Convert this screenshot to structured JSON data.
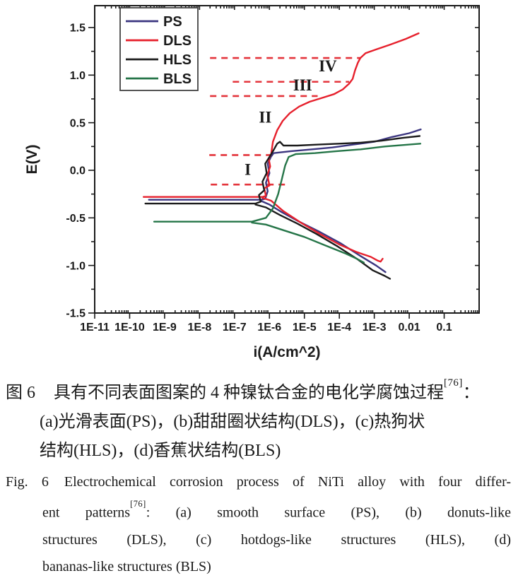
{
  "chart_data": {
    "type": "line",
    "title": "",
    "xlabel": "i(A/cm^2)",
    "ylabel": "E(V)",
    "x_scale": "log10",
    "xlim": [
      -11,
      0
    ],
    "ylim": [
      -1.5,
      1.73
    ],
    "grid": false,
    "legend_position": "top-left",
    "x_ticks": [
      {
        "log": -11,
        "label": "1E-11"
      },
      {
        "log": -10,
        "label": "1E-10"
      },
      {
        "log": -9,
        "label": "1E-9"
      },
      {
        "log": -8,
        "label": "1E-8"
      },
      {
        "log": -7,
        "label": "1E-7"
      },
      {
        "log": -6,
        "label": "1E-6"
      },
      {
        "log": -5,
        "label": "1E-5"
      },
      {
        "log": -4,
        "label": "1E-4"
      },
      {
        "log": -3,
        "label": "1E-3"
      },
      {
        "log": -2,
        "label": "0.01"
      },
      {
        "log": -1,
        "label": "0.1"
      }
    ],
    "y_ticks": [
      {
        "value": 1.5,
        "label": "1.5"
      },
      {
        "value": 1.0,
        "label": "1.0"
      },
      {
        "value": 0.5,
        "label": "0.5"
      },
      {
        "value": 0.0,
        "label": "0.0"
      },
      {
        "value": -0.5,
        "label": "-0.5"
      },
      {
        "value": -1.0,
        "label": "-1.0"
      },
      {
        "value": -1.5,
        "label": "-1.5"
      }
    ],
    "y_minor_step": 0.25,
    "corrosion_potentials_V": {
      "PS": -0.31,
      "DLS": -0.28,
      "HLS": -0.35,
      "BLS": -0.54
    },
    "series": [
      {
        "name": "PS",
        "color": "#3c3680",
        "segments": {
          "anodic": [
            [
              -9.45,
              -0.31
            ],
            [
              -6.25,
              -0.31
            ],
            [
              -6.12,
              -0.3
            ],
            [
              -6.05,
              -0.22
            ],
            [
              -6.1,
              -0.13
            ],
            [
              -6.0,
              -0.03
            ],
            [
              -6.05,
              0.07
            ],
            [
              -5.96,
              0.14
            ],
            [
              -5.88,
              0.18
            ],
            [
              -5.4,
              0.2
            ],
            [
              -4.8,
              0.22
            ],
            [
              -4.2,
              0.24
            ],
            [
              -3.6,
              0.27
            ],
            [
              -3.0,
              0.3
            ],
            [
              -2.5,
              0.35
            ],
            [
              -2.0,
              0.39
            ],
            [
              -1.67,
              0.43
            ]
          ],
          "cathodic": [
            [
              -6.25,
              -0.32
            ],
            [
              -6.0,
              -0.36
            ],
            [
              -5.65,
              -0.44
            ],
            [
              -5.15,
              -0.54
            ],
            [
              -4.55,
              -0.65
            ],
            [
              -3.95,
              -0.77
            ],
            [
              -3.4,
              -0.9
            ],
            [
              -2.95,
              -1.0
            ],
            [
              -2.68,
              -1.07
            ]
          ]
        }
      },
      {
        "name": "DLS",
        "color": "#e6202c",
        "segments": {
          "anodic": [
            [
              -9.6,
              -0.28
            ],
            [
              -6.2,
              -0.28
            ],
            [
              -6.1,
              -0.27
            ],
            [
              -6.15,
              -0.19
            ],
            [
              -6.0,
              -0.16
            ],
            [
              -6.06,
              -0.05
            ],
            [
              -5.98,
              0.04
            ],
            [
              -6.02,
              0.12
            ],
            [
              -5.95,
              0.17
            ],
            [
              -5.9,
              0.3
            ],
            [
              -5.78,
              0.42
            ],
            [
              -5.62,
              0.52
            ],
            [
              -5.42,
              0.6
            ],
            [
              -5.15,
              0.67
            ],
            [
              -4.85,
              0.72
            ],
            [
              -4.5,
              0.76
            ],
            [
              -4.15,
              0.8
            ],
            [
              -3.9,
              0.85
            ],
            [
              -3.72,
              0.91
            ],
            [
              -3.62,
              0.96
            ],
            [
              -3.55,
              1.05
            ],
            [
              -3.47,
              1.13
            ],
            [
              -3.4,
              1.18
            ],
            [
              -3.25,
              1.23
            ],
            [
              -2.95,
              1.27
            ],
            [
              -2.55,
              1.32
            ],
            [
              -2.1,
              1.38
            ],
            [
              -1.73,
              1.44
            ]
          ],
          "cathodic": [
            [
              -6.2,
              -0.29
            ],
            [
              -5.95,
              -0.32
            ],
            [
              -5.6,
              -0.43
            ],
            [
              -5.1,
              -0.55
            ],
            [
              -4.55,
              -0.67
            ],
            [
              -4.0,
              -0.78
            ],
            [
              -3.5,
              -0.86
            ],
            [
              -3.1,
              -0.91
            ],
            [
              -2.9,
              -0.95
            ],
            [
              -2.82,
              -0.96
            ],
            [
              -2.76,
              -0.93
            ]
          ]
        }
      },
      {
        "name": "HLS",
        "color": "#1b1b1b",
        "segments": {
          "anodic": [
            [
              -9.55,
              -0.35
            ],
            [
              -6.4,
              -0.35
            ],
            [
              -6.25,
              -0.33
            ],
            [
              -6.3,
              -0.26
            ],
            [
              -6.15,
              -0.21
            ],
            [
              -6.2,
              -0.12
            ],
            [
              -6.08,
              -0.03
            ],
            [
              -6.12,
              0.07
            ],
            [
              -6.0,
              0.14
            ],
            [
              -5.9,
              0.2
            ],
            [
              -5.78,
              0.28
            ],
            [
              -5.7,
              0.3
            ],
            [
              -5.6,
              0.26
            ],
            [
              -5.2,
              0.26
            ],
            [
              -4.6,
              0.27
            ],
            [
              -4.0,
              0.28
            ],
            [
              -3.4,
              0.29
            ],
            [
              -2.8,
              0.31
            ],
            [
              -2.2,
              0.34
            ],
            [
              -1.7,
              0.36
            ]
          ],
          "cathodic": [
            [
              -6.4,
              -0.36
            ],
            [
              -6.1,
              -0.39
            ],
            [
              -5.7,
              -0.47
            ],
            [
              -5.2,
              -0.56
            ],
            [
              -4.65,
              -0.67
            ],
            [
              -4.05,
              -0.8
            ],
            [
              -3.5,
              -0.93
            ],
            [
              -3.05,
              -1.05
            ],
            [
              -2.7,
              -1.11
            ],
            [
              -2.55,
              -1.14
            ]
          ]
        }
      },
      {
        "name": "BLS",
        "color": "#257548",
        "segments": {
          "anodic": [
            [
              -9.3,
              -0.54
            ],
            [
              -6.5,
              -0.54
            ],
            [
              -6.1,
              -0.5
            ],
            [
              -5.9,
              -0.4
            ],
            [
              -5.75,
              -0.25
            ],
            [
              -5.65,
              -0.1
            ],
            [
              -5.55,
              0.05
            ],
            [
              -5.45,
              0.14
            ],
            [
              -5.25,
              0.17
            ],
            [
              -4.7,
              0.18
            ],
            [
              -4.1,
              0.2
            ],
            [
              -3.4,
              0.22
            ],
            [
              -2.7,
              0.25
            ],
            [
              -2.0,
              0.27
            ],
            [
              -1.68,
              0.28
            ]
          ],
          "cathodic": [
            [
              -6.5,
              -0.55
            ],
            [
              -6.1,
              -0.57
            ],
            [
              -5.6,
              -0.63
            ],
            [
              -5.0,
              -0.7
            ],
            [
              -4.4,
              -0.79
            ],
            [
              -3.85,
              -0.87
            ],
            [
              -3.5,
              -0.93
            ],
            [
              -3.3,
              -0.97
            ]
          ]
        }
      }
    ],
    "guide_lines": [
      {
        "E": 1.18,
        "log_x_from": -7.7,
        "log_x_to": -3.38,
        "style": "dashed",
        "color": "#e4353c"
      },
      {
        "E": 0.93,
        "log_x_from": -7.05,
        "log_x_to": -3.72,
        "style": "dashed",
        "color": "#e4353c"
      },
      {
        "E": 0.78,
        "log_x_from": -7.7,
        "log_x_to": -4.62,
        "style": "dashed",
        "color": "#e4353c"
      },
      {
        "E": 0.16,
        "log_x_from": -7.72,
        "log_x_to": -5.85,
        "style": "dashed",
        "color": "#e4353c"
      },
      {
        "E": -0.15,
        "log_x_from": -7.68,
        "log_x_to": -5.5,
        "style": "dashed",
        "color": "#e4353c"
      }
    ],
    "region_labels": [
      {
        "text": "I",
        "log_x": -6.62,
        "E": -0.05
      },
      {
        "text": "II",
        "log_x": -6.12,
        "E": 0.5
      },
      {
        "text": "III",
        "log_x": -5.05,
        "E": 0.84
      },
      {
        "text": "IV",
        "log_x": -4.33,
        "E": 1.04
      }
    ]
  },
  "caption_zh": {
    "fig_label": "图 6",
    "line1_main": "具有不同表面图案的 4 种镍钛合金的电化学腐蚀过程",
    "line1_sup": "[76]",
    "line1_tail": "：",
    "line2": "(a)光滑表面(PS)，(b)甜甜圈状结构(DLS)，(c)热狗状",
    "line3": "结构(HLS)，(d)香蕉状结构(BLS)"
  },
  "caption_en": {
    "fig_label": "Fig. 6",
    "line1": "Electrochemical corrosion process of NiTi alloy with four differ-",
    "line2_pre": "ent patterns",
    "line2_sup": "[76]",
    "line2_post": ": (a) smooth surface (PS), (b) donuts-like",
    "line3": "structures (DLS), (c) hotdogs-like structures (HLS), (d)",
    "line4": "bananas-like structures (BLS)"
  }
}
